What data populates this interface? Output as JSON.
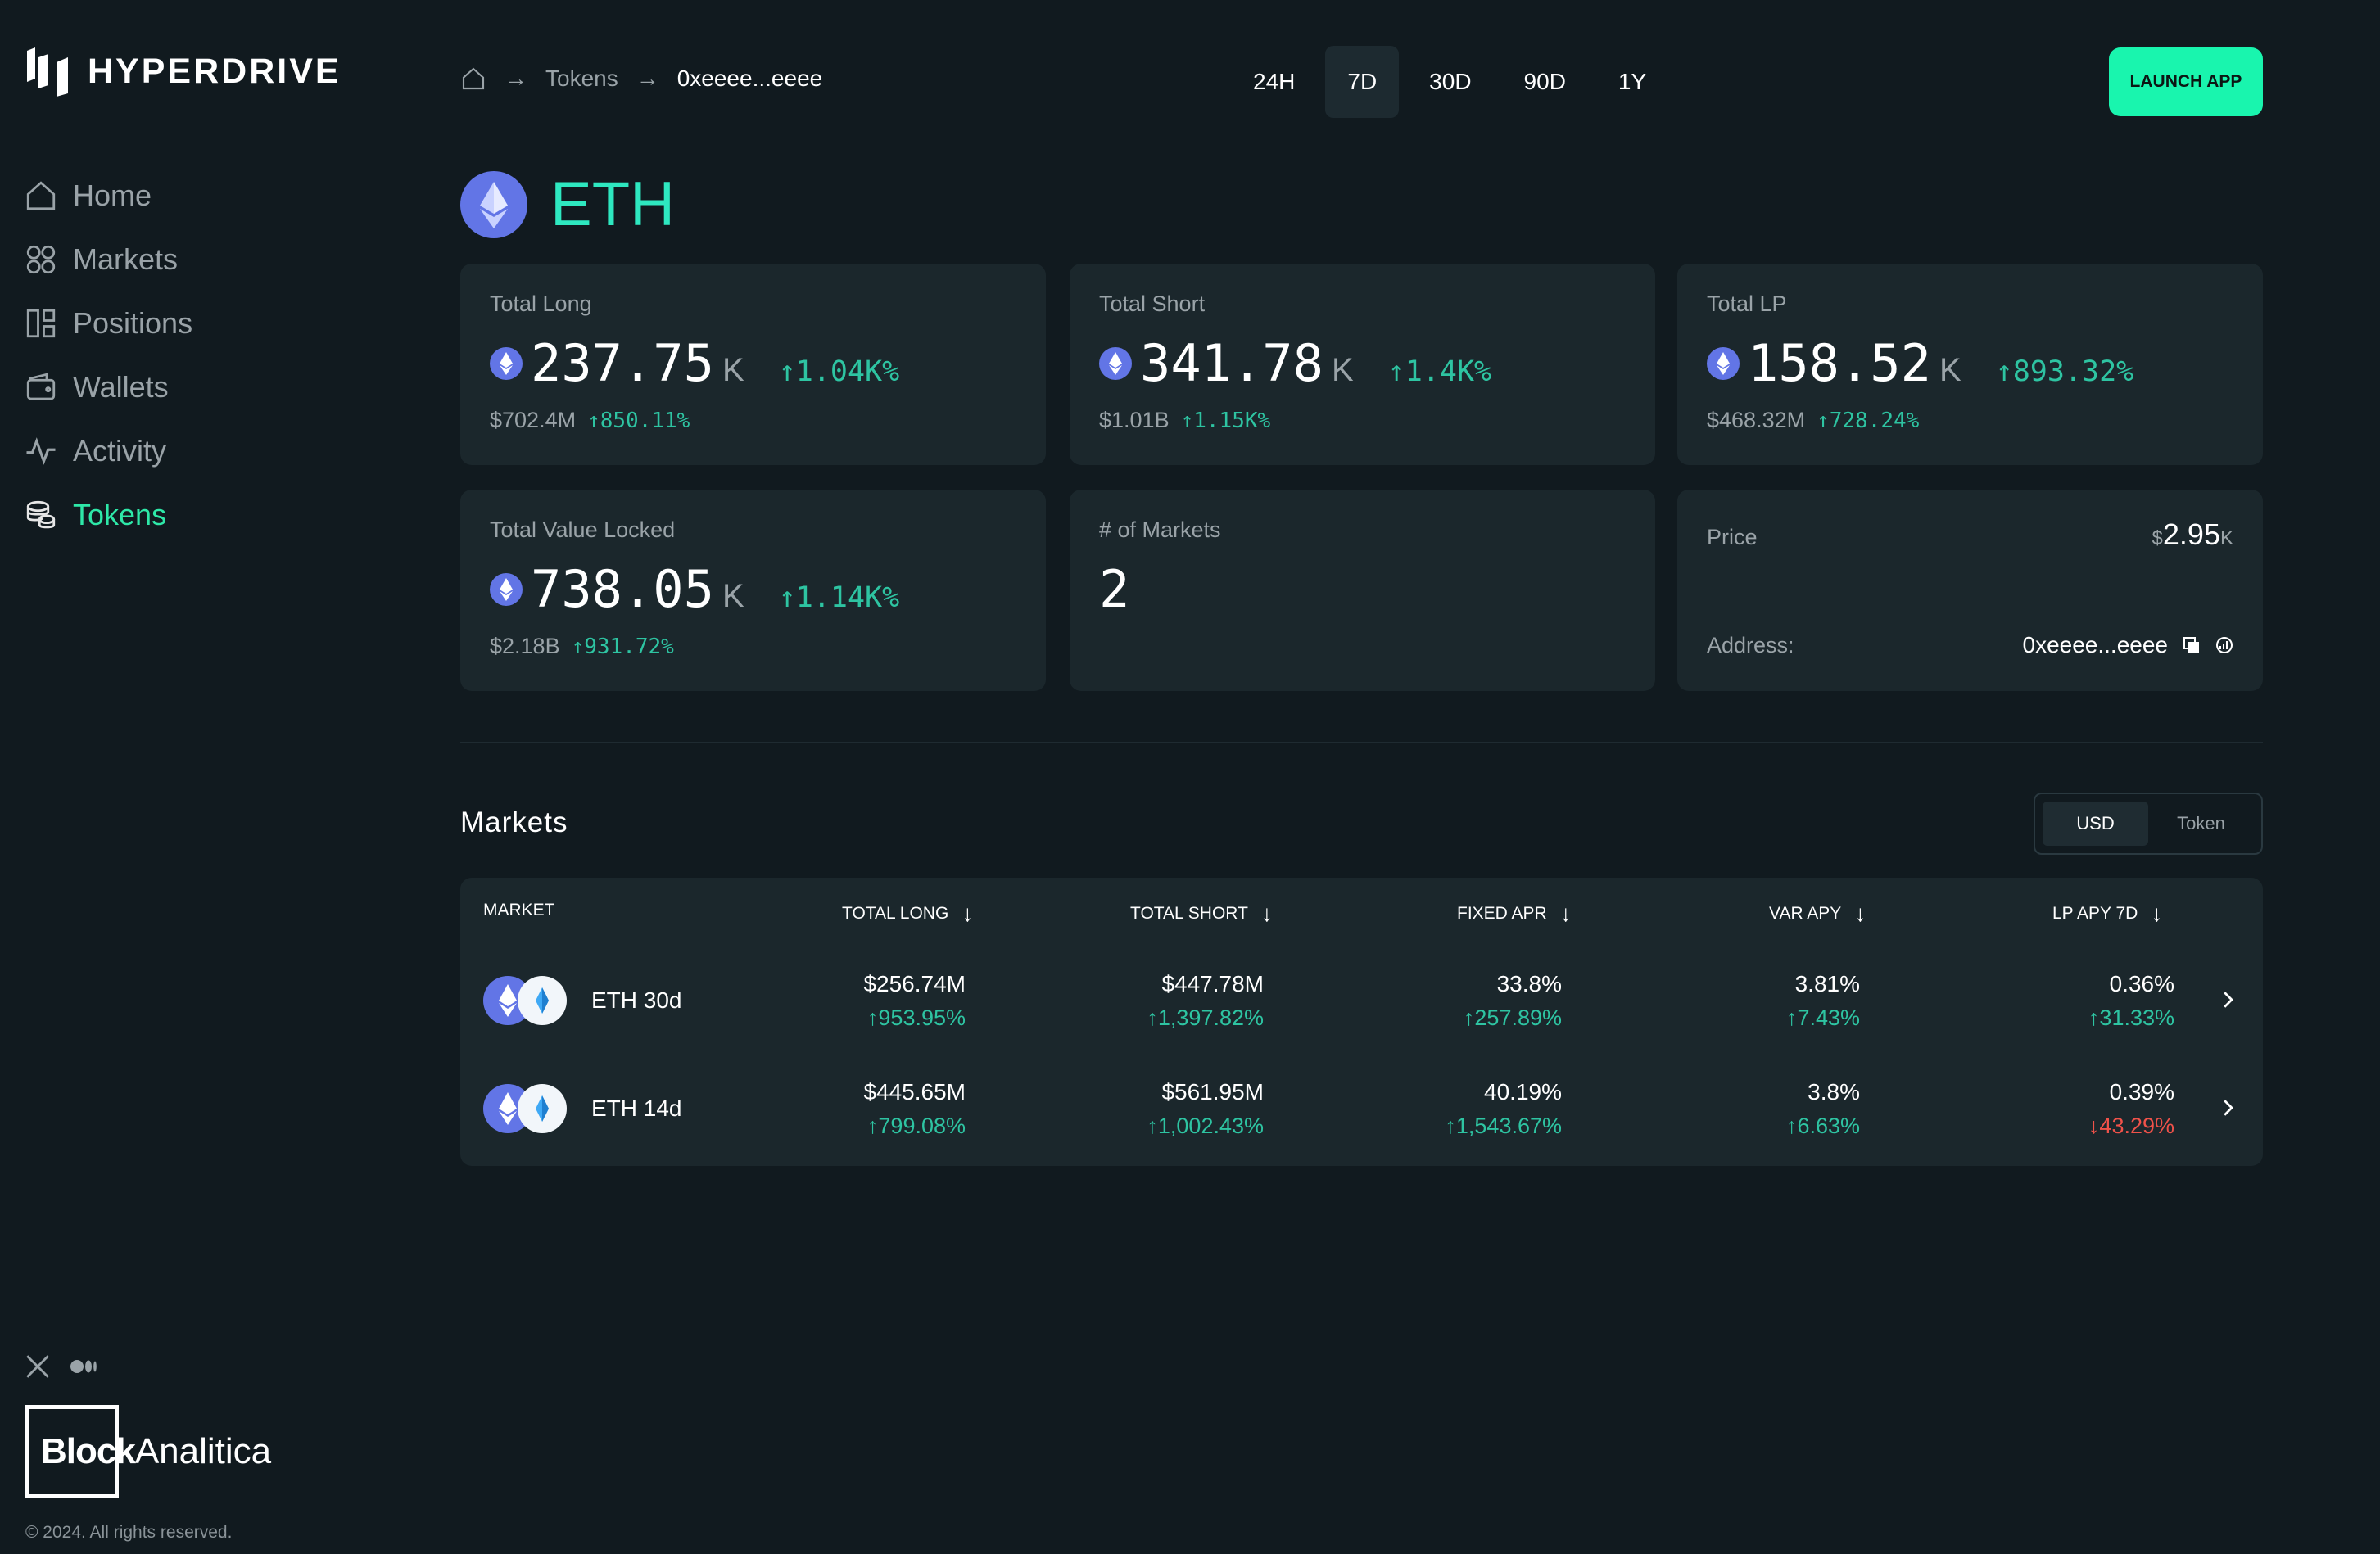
{
  "brand": {
    "name": "HYPERDRIVE"
  },
  "nav": [
    {
      "label": "Home",
      "icon": "home-icon"
    },
    {
      "label": "Markets",
      "icon": "markets-icon"
    },
    {
      "label": "Positions",
      "icon": "positions-icon"
    },
    {
      "label": "Wallets",
      "icon": "wallet-icon"
    },
    {
      "label": "Activity",
      "icon": "activity-icon"
    },
    {
      "label": "Tokens",
      "icon": "tokens-icon",
      "active": true
    }
  ],
  "breadcrumb": {
    "section": "Tokens",
    "current": "0xeeee...eeee"
  },
  "periods": [
    "24H",
    "7D",
    "30D",
    "90D",
    "1Y"
  ],
  "selected_period": "7D",
  "launch_button": "LAUNCH APP",
  "token": {
    "symbol": "ETH"
  },
  "stats": {
    "total_long": {
      "label": "Total Long",
      "value": "237.75",
      "unit": "K",
      "change": "↑1.04K%",
      "usd": "$702.4M",
      "usd_change": "↑850.11%"
    },
    "total_short": {
      "label": "Total Short",
      "value": "341.78",
      "unit": "K",
      "change": "↑1.4K%",
      "usd": "$1.01B",
      "usd_change": "↑1.15K%"
    },
    "total_lp": {
      "label": "Total LP",
      "value": "158.52",
      "unit": "K",
      "change": "↑893.32%",
      "usd": "$468.32M",
      "usd_change": "↑728.24%"
    },
    "tvl": {
      "label": "Total Value Locked",
      "value": "738.05",
      "unit": "K",
      "change": "↑1.14K%",
      "usd": "$2.18B",
      "usd_change": "↑931.72%"
    },
    "markets": {
      "label": "# of Markets",
      "value": "2"
    },
    "price": {
      "label": "Price",
      "currency": "$",
      "value": "2.95",
      "unit": "K",
      "address_label": "Address:",
      "address": "0xeeee...eeee"
    }
  },
  "markets": {
    "title": "Markets",
    "toggle": [
      "USD",
      "Token"
    ],
    "toggle_selected": "USD",
    "columns": [
      "MARKET",
      "TOTAL LONG",
      "TOTAL SHORT",
      "FIXED APR",
      "VAR APY",
      "LP APY 7D"
    ],
    "rows": [
      {
        "name": "ETH 30d",
        "total_long": "$256.74M",
        "total_long_chg": "↑953.95%",
        "total_short": "$447.78M",
        "total_short_chg": "↑1,397.82%",
        "fixed_apr": "33.8%",
        "fixed_apr_chg": "↑257.89%",
        "var_apy": "3.81%",
        "var_apy_chg": "↑7.43%",
        "lp_apy": "0.36%",
        "lp_apy_chg": "↑31.33%"
      },
      {
        "name": "ETH 14d",
        "total_long": "$445.65M",
        "total_long_chg": "↑799.08%",
        "total_short": "$561.95M",
        "total_short_chg": "↑1,002.43%",
        "fixed_apr": "40.19%",
        "fixed_apr_chg": "↑1,543.67%",
        "var_apy": "3.8%",
        "var_apy_chg": "↑6.63%",
        "lp_apy": "0.39%",
        "lp_apy_chg": "↓43.29%"
      }
    ]
  },
  "footer": {
    "partner_bold": "Block",
    "partner_rest": "Analitica",
    "copyright": "© 2024. All rights reserved."
  },
  "colors": {
    "accent": "#19f5ae",
    "positive": "#2ec4a2",
    "negative": "#f0524a",
    "background": "#111a1f",
    "card": "#1b272c"
  }
}
